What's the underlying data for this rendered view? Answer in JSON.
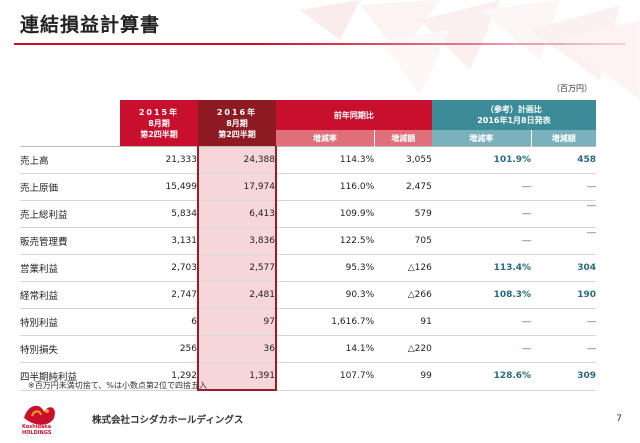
{
  "title": "連結損益計算書",
  "unit": "（百万円）",
  "header": {
    "col2015": [
      "2015年",
      "8月期",
      "第2四半期"
    ],
    "col2016": [
      "2016年",
      "8月期",
      "第2四半期"
    ],
    "prev_group": "前年同期比",
    "plan_group": [
      "（参考）計画比",
      "2016年1月8日発表"
    ],
    "sub_rate": "増減率",
    "sub_amount": "増減額"
  },
  "rows": [
    {
      "label": "売上高",
      "v2015": "21,333",
      "v2016": "24,388",
      "rate": "114.3%",
      "amount": "3,055",
      "plan_rate": "101.9%",
      "plan_amount": "458"
    },
    {
      "label": "売上原価",
      "v2015": "15,499",
      "v2016": "17,974",
      "rate": "116.0%",
      "amount": "2,475",
      "plan_rate": "―",
      "plan_amount": "―"
    },
    {
      "label": "売上総利益",
      "v2015": "5,834",
      "v2016": "6,413",
      "rate": "109.9%",
      "amount": "579",
      "plan_rate": "―",
      "plan_amount": "―"
    },
    {
      "label": "販売管理費",
      "v2015": "3,131",
      "v2016": "3,836",
      "rate": "122.5%",
      "amount": "705",
      "plan_rate": "―",
      "plan_amount": "―"
    },
    {
      "label": "営業利益",
      "v2015": "2,703",
      "v2016": "2,577",
      "rate": "95.3%",
      "amount": "△126",
      "plan_rate": "113.4%",
      "plan_amount": "304"
    },
    {
      "label": "経常利益",
      "v2015": "2,747",
      "v2016": "2,481",
      "rate": "90.3%",
      "amount": "△266",
      "plan_rate": "108.3%",
      "plan_amount": "190"
    },
    {
      "label": "特別利益",
      "v2015": "6",
      "v2016": "97",
      "rate": "1,616.7%",
      "amount": "91",
      "plan_rate": "―",
      "plan_amount": "―"
    },
    {
      "label": "特別損失",
      "v2015": "256",
      "v2016": "36",
      "rate": "14.1%",
      "amount": "△220",
      "plan_rate": "―",
      "plan_amount": "―"
    },
    {
      "label": "四半期純利益",
      "v2015": "1,292",
      "v2016": "1,391",
      "rate": "107.7%",
      "amount": "99",
      "plan_rate": "128.6%",
      "plan_amount": "309"
    }
  ],
  "note": "※百万円未満切捨て、%は小数点第2位で四捨五入",
  "logo_text": [
    "Koshidaka",
    "HOLDINGS"
  ],
  "company": "株式会社コシダカホールディングス",
  "page_number": "7",
  "colors": {
    "accent_red": "#c8102e",
    "dark_red": "#8e1b24",
    "teal": "#3b8b99",
    "blue_text": "#2a6b83"
  }
}
